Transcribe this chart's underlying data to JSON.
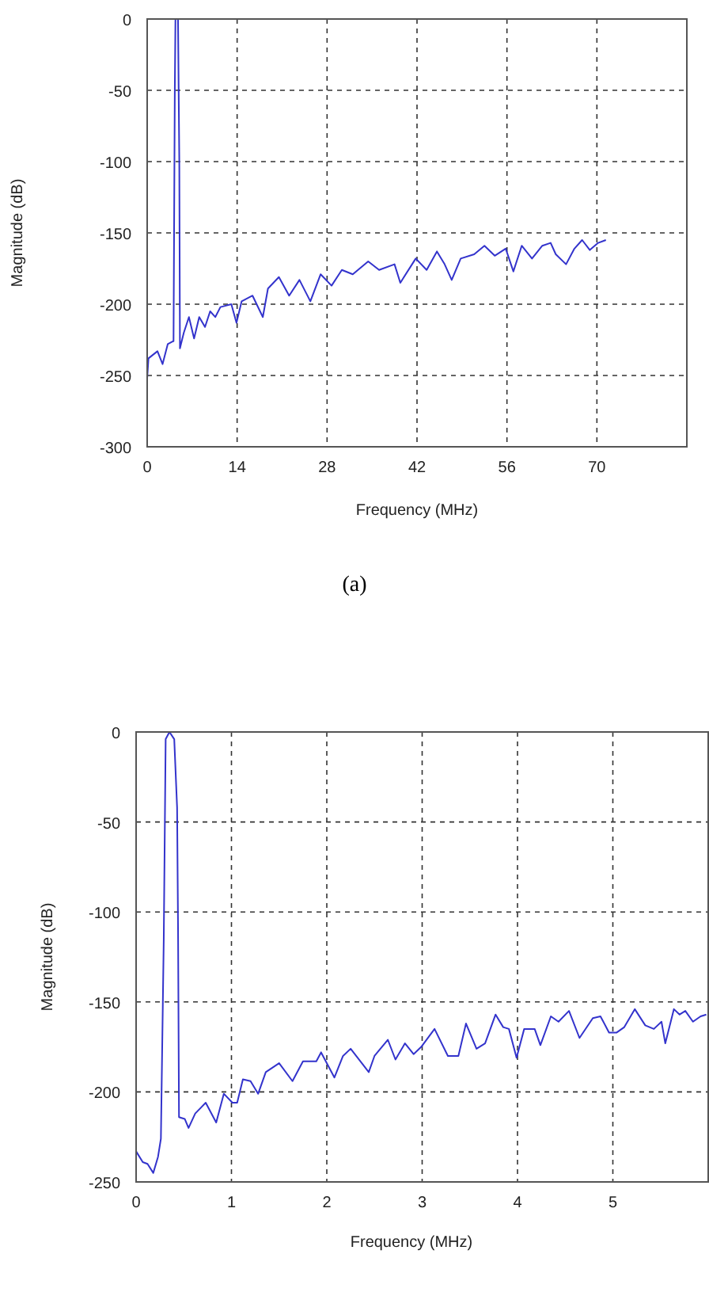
{
  "chart_data": [
    {
      "type": "line",
      "xlabel": "Frequency (MHz)",
      "ylabel": "Magnitude (dB)",
      "annotations": [
        "(a)"
      ],
      "xlim": [
        0,
        84
      ],
      "ylim": [
        -300,
        0
      ],
      "xticks": [
        0,
        14,
        28,
        42,
        56,
        70
      ],
      "yticks": [
        -300,
        -250,
        -200,
        -150,
        -100,
        -50,
        0
      ],
      "grid": true,
      "line_style": "solid",
      "series": [
        {
          "color": "#3333cc",
          "x": [
            0,
            0.2,
            1.6,
            2.4,
            3.2,
            4.0,
            4.1,
            4.3,
            4.4,
            4.8,
            5.0,
            5.1,
            5.7,
            6.5,
            7.3,
            8.1,
            9.0,
            9.8,
            10.6,
            11.4,
            13.1,
            13.9,
            14.7,
            16.4,
            18.0,
            18.8,
            20.5,
            22.1,
            23.7,
            25.4,
            27.0,
            28.7,
            30.3,
            32.0,
            34.4,
            36.1,
            38.5,
            39.4,
            41.8,
            43.5,
            45.1,
            46.3,
            47.4,
            48.8,
            50.9,
            52.5,
            54.1,
            55.8,
            57.0,
            58.3,
            59.9,
            61.5,
            62.8,
            63.6,
            65.2,
            66.5,
            67.7,
            68.9,
            70.2,
            71.4
          ],
          "values": [
            -252,
            -238,
            -233,
            -242,
            -228,
            -226,
            -226,
            -50,
            0,
            0,
            -100,
            -231,
            -220,
            -209,
            -224,
            -209,
            -216,
            -205,
            -209,
            -202,
            -200,
            -213,
            -198,
            -194,
            -209,
            -189,
            -181,
            -194,
            -183,
            -198,
            -179,
            -187,
            -176,
            -179,
            -170,
            -176,
            -172,
            -185,
            -168,
            -176,
            -163,
            -172,
            -183,
            -168,
            -165,
            -159,
            -166,
            -161,
            -177,
            -159,
            -168,
            -159,
            -157,
            -165,
            -172,
            -161,
            -155,
            -162,
            -157,
            -155
          ]
        }
      ]
    },
    {
      "type": "line",
      "xlabel": "Frequency (MHz)",
      "ylabel": "Magnitude (dB)",
      "xlim": [
        0,
        6
      ],
      "ylim": [
        -250,
        0
      ],
      "xticks": [
        0,
        1,
        2,
        3,
        4,
        5
      ],
      "yticks": [
        -250,
        -200,
        -150,
        -100,
        -50,
        0
      ],
      "grid": true,
      "line_style": "solid",
      "series": [
        {
          "color": "#3333cc",
          "x": [
            0,
            0.07,
            0.12,
            0.18,
            0.23,
            0.26,
            0.29,
            0.31,
            0.35,
            0.4,
            0.43,
            0.44,
            0.45,
            0.51,
            0.55,
            0.62,
            0.73,
            0.84,
            0.92,
            1.01,
            1.06,
            1.12,
            1.2,
            1.28,
            1.36,
            1.5,
            1.64,
            1.75,
            1.89,
            1.94,
            2.08,
            2.17,
            2.25,
            2.44,
            2.5,
            2.64,
            2.72,
            2.82,
            2.91,
            2.99,
            3.13,
            3.27,
            3.38,
            3.46,
            3.57,
            3.66,
            3.77,
            3.85,
            3.91,
            3.99,
            4.07,
            4.18,
            4.24,
            4.35,
            4.43,
            4.54,
            4.65,
            4.79,
            4.87,
            4.96,
            5.04,
            5.12,
            5.23,
            5.34,
            5.43,
            5.51,
            5.55,
            5.64,
            5.7,
            5.76,
            5.84,
            5.92,
            5.98
          ],
          "values": [
            -233,
            -239,
            -240,
            -245,
            -236,
            -226,
            -115,
            -4,
            0,
            -4,
            -42,
            -110,
            -214,
            -215,
            -220,
            -212,
            -206,
            -217,
            -201,
            -206,
            -206,
            -193,
            -194,
            -201,
            -189,
            -184,
            -194,
            -183,
            -183,
            -178,
            -192,
            -180,
            -176,
            -189,
            -180,
            -171,
            -182,
            -173,
            -179,
            -175,
            -165,
            -180,
            -180,
            -162,
            -176,
            -173,
            -157,
            -164,
            -165,
            -181,
            -165,
            -165,
            -174,
            -158,
            -161,
            -155,
            -170,
            -159,
            -158,
            -167,
            -167,
            -164,
            -154,
            -163,
            -165,
            -161,
            -173,
            -154,
            -157,
            -155,
            -161,
            -158,
            -157
          ]
        }
      ]
    }
  ]
}
